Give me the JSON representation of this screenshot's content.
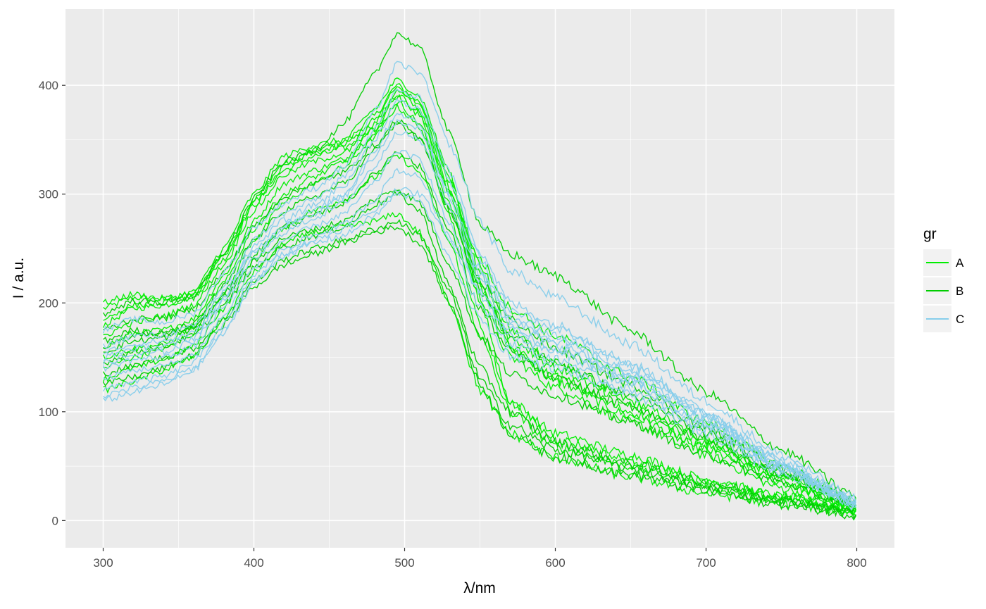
{
  "chart_data": {
    "type": "line",
    "title": "",
    "xlabel": "λ/nm",
    "ylabel": "I / a.u.",
    "xlim": [
      275,
      825
    ],
    "ylim": [
      -25,
      470
    ],
    "x_ticks": [
      300,
      400,
      500,
      600,
      700,
      800
    ],
    "y_ticks": [
      0,
      100,
      200,
      300,
      400
    ],
    "grid": true,
    "legend": {
      "title": "gr",
      "position": "right",
      "entries": [
        {
          "label": "A",
          "color": "#00EE00"
        },
        {
          "label": "B",
          "color": "#00CD00"
        },
        {
          "label": "C",
          "color": "#87CEEB"
        }
      ]
    },
    "x": [
      300,
      320,
      340,
      360,
      380,
      400,
      420,
      440,
      460,
      480,
      495,
      510,
      530,
      550,
      570,
      600,
      650,
      700,
      750,
      800
    ],
    "series": [
      {
        "group": "A",
        "values": [
          195,
          205,
          203,
          208,
          245,
          295,
          328,
          340,
          348,
          372,
          400,
          385,
          315,
          235,
          175,
          145,
          110,
          75,
          40,
          12
        ]
      },
      {
        "group": "A",
        "values": [
          180,
          195,
          198,
          205,
          240,
          290,
          322,
          335,
          342,
          365,
          395,
          378,
          305,
          220,
          160,
          128,
          96,
          65,
          35,
          10
        ]
      },
      {
        "group": "A",
        "values": [
          160,
          172,
          175,
          185,
          225,
          275,
          310,
          322,
          332,
          355,
          385,
          365,
          290,
          205,
          150,
          122,
          90,
          60,
          30,
          8
        ]
      },
      {
        "group": "A",
        "values": [
          140,
          150,
          158,
          172,
          208,
          258,
          292,
          310,
          325,
          352,
          380,
          362,
          280,
          180,
          110,
          80,
          60,
          38,
          22,
          10
        ]
      },
      {
        "group": "A",
        "values": [
          200,
          208,
          204,
          210,
          250,
          300,
          335,
          345,
          350,
          378,
          405,
          390,
          320,
          200,
          108,
          75,
          55,
          35,
          22,
          12
        ]
      },
      {
        "group": "A",
        "values": [
          130,
          140,
          148,
          160,
          195,
          240,
          270,
          285,
          295,
          315,
          335,
          320,
          255,
          170,
          100,
          68,
          50,
          32,
          20,
          8
        ]
      },
      {
        "group": "A",
        "values": [
          150,
          158,
          162,
          178,
          218,
          268,
          300,
          316,
          330,
          360,
          392,
          375,
          300,
          215,
          158,
          132,
          100,
          68,
          36,
          12
        ]
      },
      {
        "group": "A",
        "values": [
          120,
          128,
          138,
          150,
          185,
          228,
          255,
          265,
          270,
          275,
          282,
          265,
          200,
          120,
          80,
          58,
          40,
          25,
          15,
          8
        ]
      },
      {
        "group": "A",
        "values": [
          185,
          198,
          200,
          206,
          242,
          292,
          325,
          338,
          345,
          368,
          398,
          382,
          312,
          228,
          168,
          140,
          106,
          72,
          40,
          14
        ]
      },
      {
        "group": "A",
        "values": [
          170,
          182,
          188,
          198,
          235,
          285,
          318,
          330,
          338,
          360,
          390,
          372,
          302,
          240,
          195,
          170,
          132,
          90,
          50,
          18
        ]
      },
      {
        "group": "B",
        "values": [
          190,
          202,
          200,
          206,
          246,
          296,
          330,
          340,
          365,
          410,
          448,
          435,
          355,
          272,
          245,
          225,
          175,
          118,
          65,
          22
        ]
      },
      {
        "group": "B",
        "values": [
          165,
          175,
          172,
          178,
          205,
          238,
          260,
          268,
          275,
          295,
          305,
          292,
          235,
          170,
          135,
          115,
          90,
          60,
          35,
          12
        ]
      },
      {
        "group": "B",
        "values": [
          145,
          155,
          160,
          170,
          198,
          232,
          252,
          262,
          270,
          290,
          300,
          285,
          215,
          140,
          100,
          72,
          52,
          35,
          20,
          8
        ]
      },
      {
        "group": "B",
        "values": [
          135,
          142,
          150,
          158,
          185,
          220,
          240,
          250,
          258,
          268,
          275,
          262,
          210,
          130,
          88,
          65,
          48,
          30,
          18,
          6
        ]
      },
      {
        "group": "B",
        "values": [
          155,
          165,
          168,
          176,
          208,
          245,
          270,
          280,
          292,
          318,
          340,
          325,
          265,
          195,
          155,
          130,
          105,
          75,
          42,
          15
        ]
      },
      {
        "group": "B",
        "values": [
          175,
          185,
          186,
          194,
          228,
          270,
          298,
          310,
          320,
          345,
          365,
          350,
          285,
          212,
          170,
          145,
          115,
          80,
          45,
          15
        ]
      },
      {
        "group": "B",
        "values": [
          125,
          132,
          140,
          152,
          180,
          215,
          235,
          245,
          255,
          265,
          270,
          255,
          200,
          125,
          80,
          58,
          42,
          27,
          15,
          5
        ]
      },
      {
        "group": "B",
        "values": [
          160,
          170,
          172,
          180,
          215,
          258,
          285,
          298,
          310,
          340,
          368,
          352,
          285,
          220,
          185,
          158,
          125,
          85,
          48,
          16
        ]
      },
      {
        "group": "C",
        "values": [
          175,
          185,
          182,
          190,
          228,
          270,
          292,
          305,
          325,
          375,
          420,
          412,
          345,
          275,
          230,
          205,
          162,
          110,
          60,
          20
        ]
      },
      {
        "group": "C",
        "values": [
          160,
          170,
          170,
          178,
          215,
          258,
          282,
          295,
          315,
          360,
          395,
          388,
          320,
          248,
          200,
          180,
          145,
          100,
          55,
          18
        ]
      },
      {
        "group": "C",
        "values": [
          150,
          158,
          160,
          168,
          205,
          248,
          272,
          285,
          300,
          340,
          375,
          365,
          300,
          230,
          188,
          170,
          138,
          96,
          52,
          16
        ]
      },
      {
        "group": "C",
        "values": [
          140,
          148,
          150,
          160,
          196,
          240,
          265,
          278,
          292,
          325,
          358,
          350,
          288,
          220,
          180,
          162,
          132,
          92,
          50,
          15
        ]
      },
      {
        "group": "C",
        "values": [
          130,
          138,
          142,
          152,
          188,
          232,
          258,
          270,
          282,
          310,
          340,
          332,
          272,
          208,
          170,
          155,
          126,
          88,
          48,
          14
        ]
      },
      {
        "group": "C",
        "values": [
          120,
          128,
          132,
          145,
          180,
          225,
          250,
          262,
          272,
          295,
          322,
          316,
          258,
          198,
          162,
          148,
          120,
          84,
          46,
          14
        ]
      },
      {
        "group": "C",
        "values": [
          110,
          118,
          125,
          138,
          172,
          218,
          244,
          255,
          262,
          280,
          300,
          295,
          240,
          185,
          152,
          140,
          115,
          80,
          44,
          13
        ]
      },
      {
        "group": "C",
        "values": [
          145,
          152,
          155,
          165,
          202,
          246,
          270,
          282,
          298,
          335,
          366,
          360,
          296,
          226,
          185,
          166,
          135,
          94,
          51,
          16
        ]
      },
      {
        "group": "C",
        "values": [
          155,
          162,
          165,
          172,
          210,
          252,
          276,
          290,
          308,
          350,
          385,
          378,
          312,
          240,
          195,
          176,
          142,
          98,
          54,
          17
        ]
      },
      {
        "group": "C",
        "values": [
          115,
          122,
          128,
          140,
          175,
          220,
          246,
          258,
          268,
          285,
          305,
          300,
          262,
          210,
          175,
          158,
          128,
          88,
          48,
          15
        ]
      }
    ]
  }
}
